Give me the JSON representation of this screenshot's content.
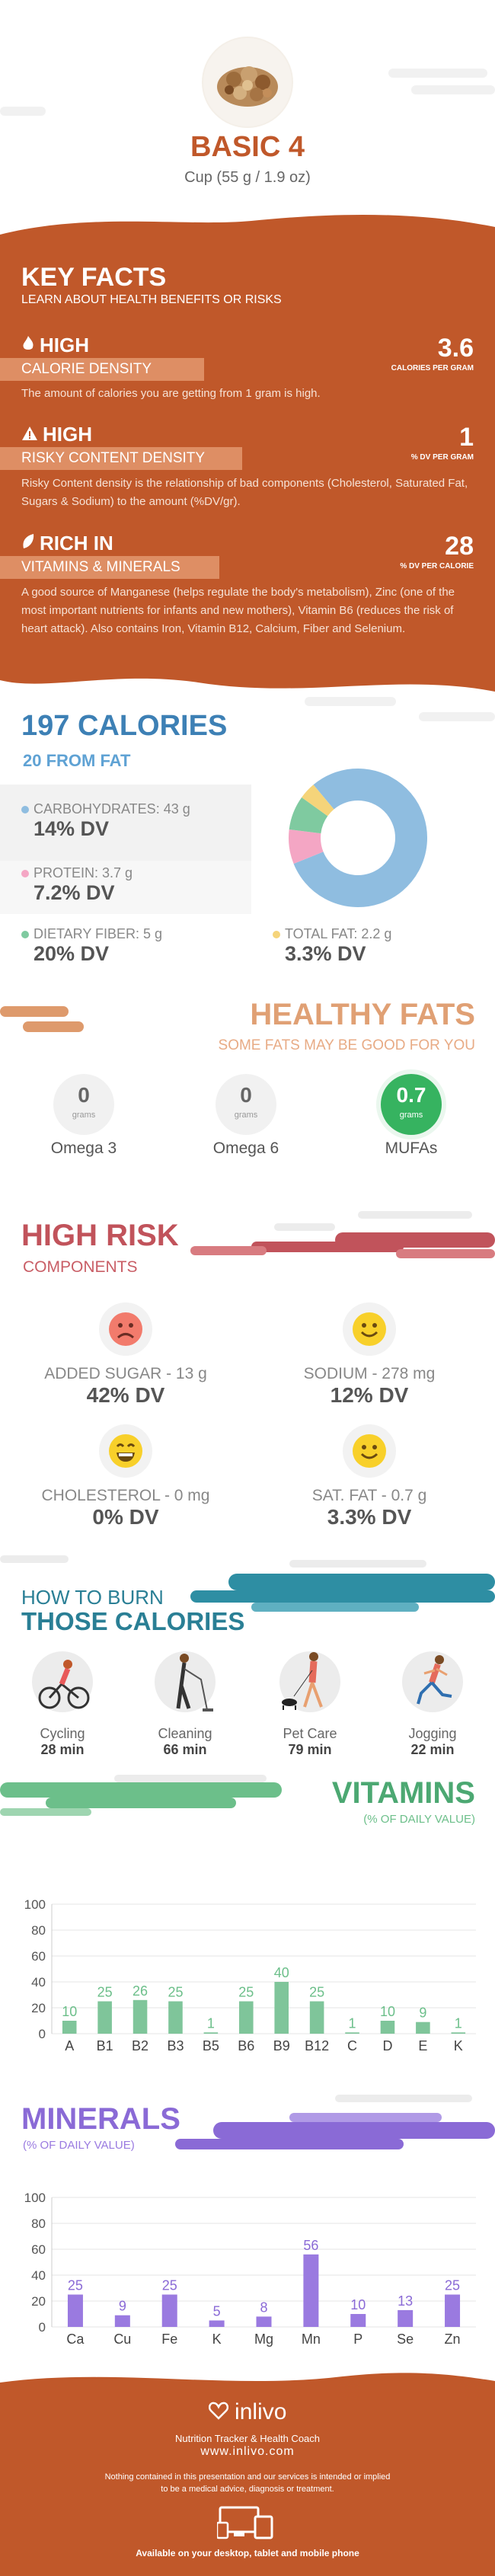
{
  "header": {
    "title": "BASIC 4",
    "serving": "Cup (55 g / 1.9 oz)"
  },
  "key_facts": {
    "title": "KEY FACTS",
    "subtitle": "LEARN ABOUT HEALTH BENEFITS OR RISKS",
    "items": [
      {
        "level": "HIGH",
        "label": "CALORIE DENSITY",
        "value": "3.6",
        "unit": "CALORIES PER GRAM",
        "desc": "The amount of calories you are getting from 1 gram is high."
      },
      {
        "level": "HIGH",
        "label": "RISKY CONTENT DENSITY",
        "value": "1",
        "unit": "% DV PER GRAM",
        "desc": "Risky Content density is the relationship of bad components (Cholesterol, Saturated Fat, Sugars & Sodium) to the amount (%DV/gr)."
      },
      {
        "level": "RICH  IN",
        "label": "VITAMINS & MINERALS",
        "value": "28",
        "unit": "% DV PER CALORIE",
        "desc": "A good source of Manganese (helps regulate the body's metabolism), Zinc (one of the most important nutrients for infants and new mothers), Vitamin B6 (reduces the risk of heart attack). Also contains Iron, Vitamin B12, Calcium, Fiber and Selenium."
      }
    ]
  },
  "calories": {
    "title": "197 CALORIES",
    "from_fat": "20 FROM FAT",
    "items": [
      {
        "label": "CARBOHYDRATES: 43 g",
        "dv": "14% DV",
        "color": "#8fbde0"
      },
      {
        "label": "PROTEIN: 3.7 g",
        "dv": "7.2% DV",
        "color": "#f4a6c4"
      },
      {
        "label": "DIETARY FIBER: 5 g",
        "dv": "20% DV",
        "color": "#7fcaa0"
      },
      {
        "label": "TOTAL FAT: 2.2 g",
        "dv": "3.3% DV",
        "color": "#f5d47a"
      }
    ],
    "donut_colors": [
      "#8fbde0",
      "#f4a6c4",
      "#7fcaa0",
      "#f5d47a"
    ]
  },
  "fats": {
    "title": "HEALTHY FATS",
    "subtitle": "SOME FATS MAY BE GOOD FOR YOU",
    "items": [
      {
        "value": "0",
        "unit": "grams",
        "label": "Omega 3",
        "highlight": false
      },
      {
        "value": "0",
        "unit": "grams",
        "label": "Omega 6",
        "highlight": false
      },
      {
        "value": "0.7",
        "unit": "grams",
        "label": "MUFAs",
        "highlight": true
      }
    ]
  },
  "risk": {
    "title": "HIGH RISK",
    "subtitle": "COMPONENTS",
    "items": [
      {
        "label": "ADDED SUGAR - 13 g",
        "dv": "42% DV",
        "face": "sad"
      },
      {
        "label": "SODIUM - 278 mg",
        "dv": "12% DV",
        "face": "happy"
      },
      {
        "label": "CHOLESTEROL - 0 mg",
        "dv": "0% DV",
        "face": "grin"
      },
      {
        "label": "SAT. FAT - 0.7 g",
        "dv": "3.3% DV",
        "face": "happy"
      }
    ]
  },
  "burn": {
    "title1": "HOW TO BURN",
    "title2": "THOSE CALORIES",
    "items": [
      {
        "activity": "Cycling",
        "time": "28 min",
        "icon": "cycling-icon"
      },
      {
        "activity": "Cleaning",
        "time": "66 min",
        "icon": "cleaning-icon"
      },
      {
        "activity": "Pet Care",
        "time": "79 min",
        "icon": "pet-care-icon"
      },
      {
        "activity": "Jogging",
        "time": "22 min",
        "icon": "jogging-icon"
      }
    ]
  },
  "vitamins": {
    "title": "VITAMINS",
    "subtitle": "(% OF DAILY VALUE)"
  },
  "minerals": {
    "title": "MINERALS",
    "subtitle": "(% OF DAILY VALUE)"
  },
  "chart_data": [
    {
      "type": "bar",
      "categories": [
        "A",
        "B1",
        "B2",
        "B3",
        "B5",
        "B6",
        "B9",
        "B12",
        "C",
        "D",
        "E",
        "K"
      ],
      "values": [
        10,
        25,
        26,
        25,
        1,
        25,
        40,
        25,
        1,
        10,
        9,
        1
      ],
      "ylim": [
        0,
        100
      ],
      "yticks": [
        0,
        20,
        40,
        60,
        80,
        100
      ],
      "color": "#7fc59a",
      "label_color": "#6cbf8a"
    },
    {
      "type": "bar",
      "categories": [
        "Ca",
        "Cu",
        "Fe",
        "K",
        "Mg",
        "Mn",
        "P",
        "Se",
        "Zn"
      ],
      "values": [
        25,
        9,
        25,
        5,
        8,
        56,
        10,
        13,
        25
      ],
      "ylim": [
        0,
        100
      ],
      "yticks": [
        0,
        20,
        40,
        60,
        80,
        100
      ],
      "color": "#9a7ae0",
      "label_color": "#8a6ad6"
    }
  ],
  "footer": {
    "brand": "inlivo",
    "tagline": "Nutrition Tracker & Health Coach",
    "url": "www.inlivo.com",
    "disclaimer1": "Nothing contained in this presentation and our services is intended or implied",
    "disclaimer2": "to be a medical advice, diagnosis or treatment.",
    "devices": "Available on your desktop, tablet and mobile phone"
  }
}
